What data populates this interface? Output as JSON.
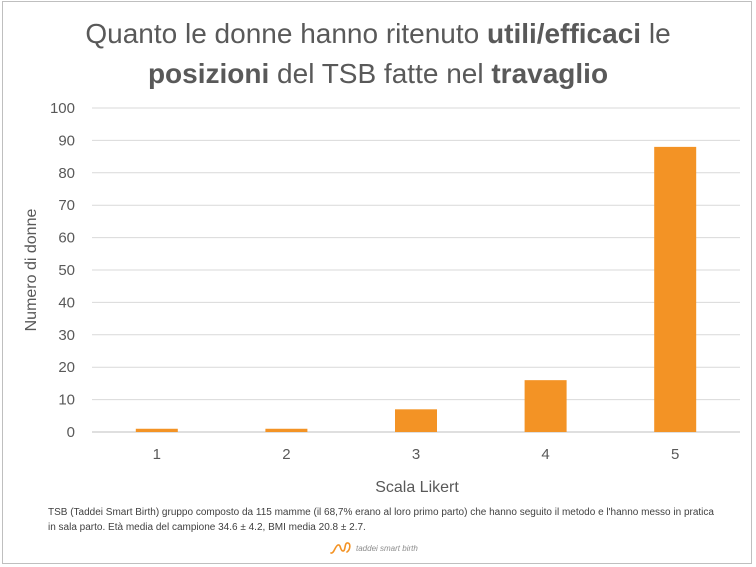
{
  "title": {
    "line1_a": "Quanto le donne hanno ritenuto ",
    "line1_b": "utili/efficaci",
    "line1_c": " le",
    "line2_a": "posizioni",
    "line2_b": " del TSB fatte nel ",
    "line2_c": "travaglio"
  },
  "chart_data": {
    "type": "bar",
    "categories": [
      "1",
      "2",
      "3",
      "4",
      "5"
    ],
    "values": [
      1,
      1,
      7,
      16,
      88
    ],
    "xlabel": "Scala Likert",
    "ylabel": "Numero di donne",
    "ylim": [
      0,
      100
    ],
    "yticks": [
      0,
      10,
      20,
      30,
      40,
      50,
      60,
      70,
      80,
      90,
      100
    ],
    "grid": true,
    "bar_color": "#f39325"
  },
  "footnote": "TSB (Taddei Smart Birth) gruppo composto da 115 mamme (il 68,7% erano al loro primo parto) che hanno seguito il metodo e l'hanno messo in pratica in sala parto. Età media del campione 34.6 ± 4.2, BMI media 20.8 ± 2.7.",
  "logo": {
    "text": "taddei smart birth",
    "color": "#f39325"
  }
}
